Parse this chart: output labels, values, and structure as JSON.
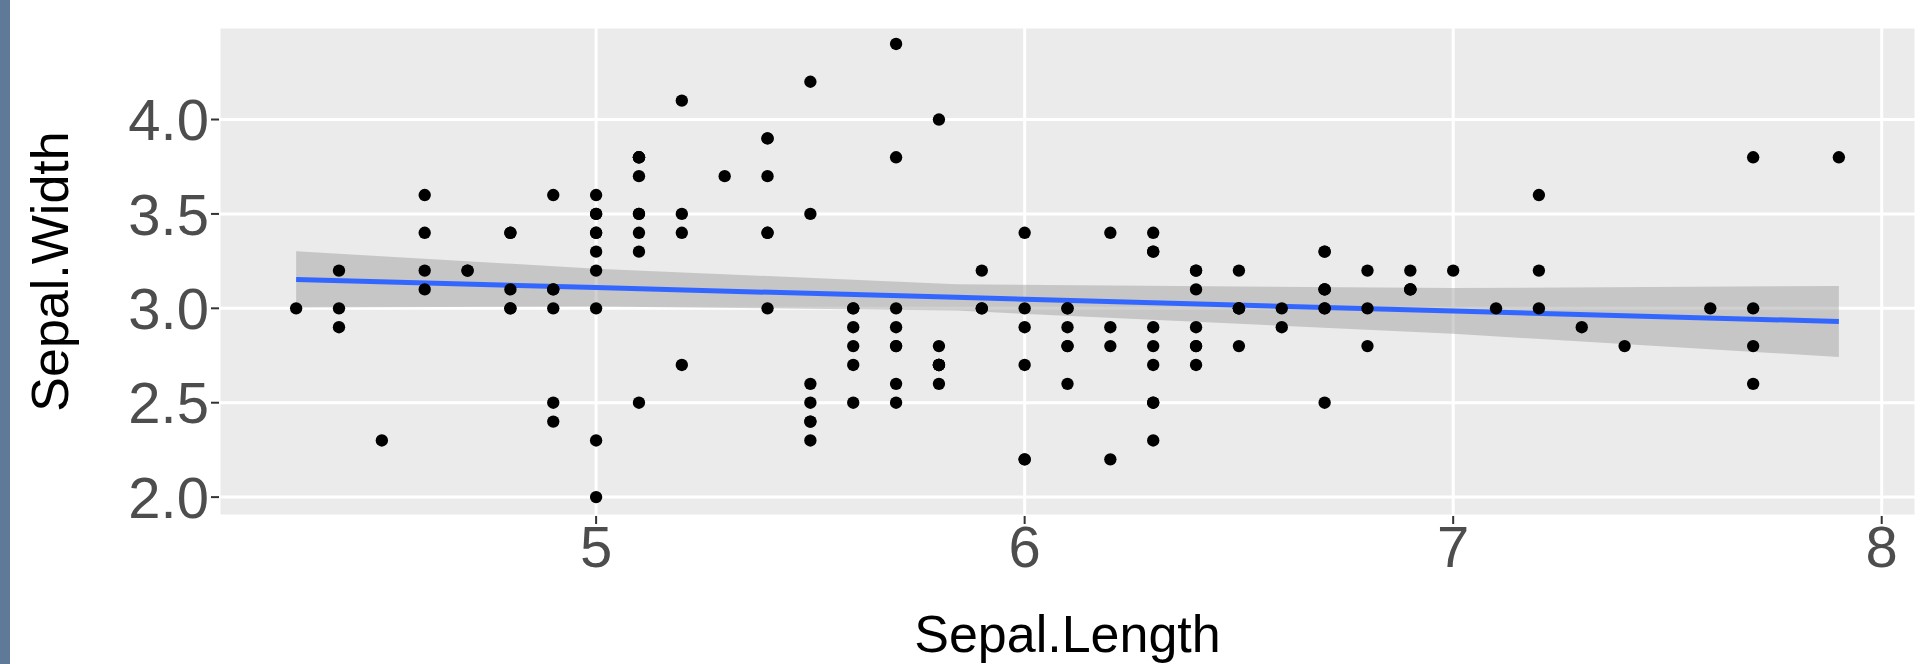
{
  "chart_data": {
    "type": "scatter",
    "xlabel": "Sepal.Length",
    "ylabel": "Sepal.Width",
    "xlim": [
      4.12,
      8.08
    ],
    "ylim": [
      1.9,
      4.49
    ],
    "xticks": [
      5,
      6,
      7,
      8
    ],
    "yticks": [
      {
        "value": 2,
        "label": "2.0"
      },
      {
        "value": 2.5,
        "label": "2.5"
      },
      {
        "value": 3,
        "label": "3.0"
      },
      {
        "value": 3.5,
        "label": "3.5"
      },
      {
        "value": 4,
        "label": "4.0"
      }
    ],
    "grid": true,
    "legend": false,
    "marker": "circle",
    "series": [
      {
        "color": "#000000",
        "x": [
          5.1,
          4.9,
          4.7,
          4.6,
          5.0,
          5.4,
          4.6,
          5.0,
          4.4,
          4.9,
          5.4,
          4.8,
          4.8,
          4.3,
          5.8,
          5.7,
          5.4,
          5.1,
          5.7,
          5.1,
          5.4,
          5.1,
          4.6,
          5.1,
          4.8,
          5.0,
          5.0,
          5.2,
          5.2,
          4.7,
          4.8,
          5.4,
          5.2,
          5.5,
          4.9,
          5.0,
          5.5,
          4.9,
          4.4,
          5.1,
          5.0,
          4.5,
          4.4,
          5.0,
          5.1,
          4.8,
          5.1,
          4.6,
          5.3,
          5.0,
          7.0,
          6.4,
          6.9,
          5.5,
          6.5,
          5.7,
          6.3,
          4.9,
          6.6,
          5.2,
          5.0,
          5.9,
          6.0,
          6.1,
          5.6,
          6.7,
          5.6,
          5.8,
          6.2,
          5.6,
          5.9,
          6.1,
          6.3,
          6.1,
          6.4,
          6.6,
          6.8,
          6.7,
          6.0,
          5.7,
          5.5,
          5.5,
          5.8,
          6.0,
          5.4,
          6.0,
          6.7,
          6.3,
          5.6,
          5.5,
          5.5,
          6.1,
          5.8,
          5.0,
          5.6,
          5.7,
          5.7,
          6.2,
          5.1,
          5.7,
          6.3,
          5.8,
          7.1,
          6.3,
          6.5,
          7.6,
          4.9,
          7.3,
          6.7,
          7.2,
          6.5,
          6.4,
          6.8,
          5.7,
          5.8,
          6.4,
          6.5,
          7.7,
          7.7,
          6.0,
          6.9,
          5.6,
          7.7,
          6.3,
          6.7,
          7.2,
          6.2,
          6.1,
          6.4,
          7.2,
          7.4,
          7.9,
          6.4,
          6.3,
          6.1,
          7.7,
          6.3,
          6.4,
          6.0,
          6.9,
          6.7,
          6.9,
          5.8,
          6.8,
          6.7,
          6.7,
          6.3,
          6.5,
          6.2,
          5.9
        ],
        "values": [
          3.5,
          3.0,
          3.2,
          3.1,
          3.6,
          3.9,
          3.4,
          3.4,
          2.9,
          3.1,
          3.7,
          3.4,
          3.0,
          3.0,
          4.0,
          4.4,
          3.9,
          3.5,
          3.8,
          3.8,
          3.4,
          3.7,
          3.6,
          3.3,
          3.4,
          3.0,
          3.4,
          3.5,
          3.4,
          3.2,
          3.1,
          3.4,
          4.1,
          4.2,
          3.1,
          3.2,
          3.5,
          3.6,
          3.0,
          3.4,
          3.5,
          2.3,
          3.2,
          3.5,
          3.8,
          3.0,
          3.8,
          3.2,
          3.7,
          3.3,
          3.2,
          3.2,
          3.1,
          2.3,
          2.8,
          2.8,
          3.3,
          2.4,
          2.9,
          2.7,
          2.0,
          3.0,
          2.2,
          2.9,
          2.9,
          3.1,
          3.0,
          2.7,
          2.2,
          2.5,
          3.2,
          2.8,
          2.5,
          2.8,
          2.9,
          3.0,
          2.8,
          3.0,
          2.9,
          2.6,
          2.4,
          2.4,
          2.7,
          2.7,
          3.0,
          3.4,
          3.1,
          2.3,
          3.0,
          2.5,
          2.6,
          3.0,
          2.6,
          2.3,
          2.7,
          3.0,
          2.9,
          2.9,
          2.5,
          2.8,
          3.3,
          2.7,
          3.0,
          2.9,
          3.0,
          3.0,
          2.5,
          2.9,
          2.5,
          3.6,
          3.2,
          2.7,
          3.0,
          2.5,
          2.8,
          3.2,
          3.0,
          3.8,
          2.6,
          2.2,
          3.2,
          2.8,
          2.8,
          2.7,
          3.3,
          3.2,
          2.8,
          3.0,
          2.8,
          3.0,
          2.8,
          3.8,
          2.8,
          2.8,
          2.6,
          3.0,
          3.4,
          3.1,
          3.0,
          3.1,
          3.1,
          3.1,
          2.7,
          3.2,
          3.3,
          3.0,
          2.5,
          3.0,
          3.4,
          3.0
        ]
      },
      {
        "type": "line",
        "marker": "none",
        "color": "#3366ff",
        "x": [
          4.3,
          5.0,
          5.84,
          7.0,
          7.9
        ],
        "values": [
          3.153,
          3.11,
          3.058,
          2.986,
          2.93
        ],
        "lower": [
          3.004,
          3.01,
          2.988,
          2.865,
          2.742
        ],
        "upper": [
          3.302,
          3.21,
          3.128,
          3.107,
          3.118
        ]
      }
    ]
  }
}
